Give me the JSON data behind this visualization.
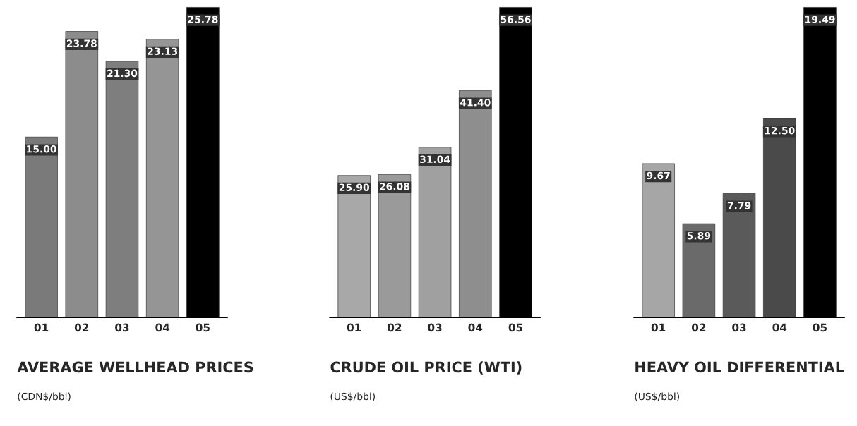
{
  "chart_data": [
    {
      "type": "bar",
      "title": "AVERAGE WELLHEAD PRICES",
      "subtitle": "(CDN$/bbl)",
      "categories": [
        "01",
        "02",
        "03",
        "04",
        "05"
      ],
      "values": [
        15.0,
        23.78,
        21.3,
        23.13,
        25.78
      ],
      "value_labels": [
        "15.00",
        "23.78",
        "21.30",
        "23.13",
        "25.78"
      ],
      "colors": [
        "#7a7a7a",
        "#8c8c8c",
        "#7e7e7e",
        "#959595",
        "#000000"
      ],
      "tick_labels": "x"
    },
    {
      "type": "bar",
      "title": "CRUDE OIL PRICE (WTI)",
      "subtitle": "(US$/bbl)",
      "categories": [
        "01",
        "02",
        "03",
        "04",
        "05"
      ],
      "values": [
        25.9,
        26.08,
        31.04,
        41.4,
        56.56
      ],
      "value_labels": [
        "25.90",
        "26.08",
        "31.04",
        "41.40",
        "56.56"
      ],
      "colors": [
        "#a8a8a8",
        "#9a9a9a",
        "#a0a0a0",
        "#8e8e8e",
        "#000000"
      ],
      "tick_labels": "x"
    },
    {
      "type": "bar",
      "title": "HEAVY OIL DIFFERENTIAL",
      "subtitle": "(US$/bbl)",
      "categories": [
        "01",
        "02",
        "03",
        "04",
        "05"
      ],
      "values": [
        9.67,
        5.89,
        7.79,
        12.5,
        19.49
      ],
      "value_labels": [
        "9.67",
        "5.89",
        "7.79",
        "12.50",
        "19.49"
      ],
      "colors": [
        "#a6a6a6",
        "#6a6a6a",
        "#5a5a5a",
        "#4a4a4a",
        "#000000"
      ],
      "tick_labels": "x"
    }
  ]
}
